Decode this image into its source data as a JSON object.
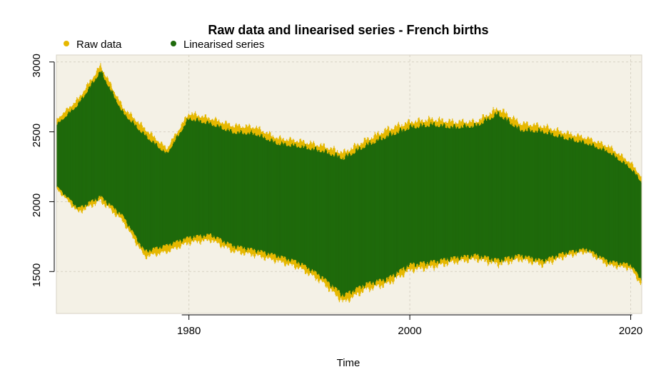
{
  "chart_data": {
    "type": "line",
    "title": "Raw data and linearised series - French births",
    "xlabel": "Time",
    "ylabel": "",
    "xlim": [
      1968,
      2021
    ],
    "ylim": [
      1200,
      3050
    ],
    "grid": true,
    "legend_position": "top-left",
    "x_ticks": [
      1980,
      2000,
      2020
    ],
    "y_ticks": [
      1500,
      2000,
      2500,
      3000
    ],
    "series": [
      {
        "name": "Raw data",
        "color": "#E6B800",
        "x": [
          1968,
          1970,
          1972,
          1974,
          1976,
          1978,
          1980,
          1982,
          1984,
          1986,
          1988,
          1990,
          1992,
          1994,
          1996,
          1998,
          2000,
          2002,
          2004,
          2006,
          2008,
          2010,
          2012,
          2014,
          2016,
          2018,
          2020,
          2021
        ],
        "min": [
          2080,
          1900,
          1980,
          1840,
          1580,
          1620,
          1680,
          1700,
          1620,
          1590,
          1550,
          1500,
          1400,
          1250,
          1340,
          1380,
          1480,
          1500,
          1540,
          1560,
          1520,
          1560,
          1520,
          1580,
          1620,
          1520,
          1500,
          1380
        ],
        "max": [
          2600,
          2760,
          3000,
          2700,
          2550,
          2400,
          2660,
          2620,
          2570,
          2560,
          2480,
          2460,
          2430,
          2380,
          2470,
          2550,
          2600,
          2620,
          2600,
          2600,
          2700,
          2590,
          2570,
          2520,
          2480,
          2420,
          2300,
          2200
        ]
      },
      {
        "name": "Linearised series",
        "color": "#1F6A0C",
        "x": [
          1968,
          1970,
          1972,
          1974,
          1976,
          1978,
          1980,
          1982,
          1984,
          1986,
          1988,
          1990,
          1992,
          1994,
          1996,
          1998,
          2000,
          2002,
          2004,
          2006,
          2008,
          2010,
          2012,
          2014,
          2016,
          2018,
          2020,
          2021
        ],
        "min": [
          2100,
          1930,
          2010,
          1880,
          1620,
          1670,
          1720,
          1740,
          1660,
          1630,
          1590,
          1540,
          1440,
          1300,
          1380,
          1420,
          1520,
          1540,
          1570,
          1590,
          1550,
          1590,
          1550,
          1610,
          1640,
          1550,
          1530,
          1420
        ],
        "max": [
          2560,
          2720,
          2960,
          2660,
          2500,
          2360,
          2620,
          2580,
          2520,
          2510,
          2440,
          2420,
          2390,
          2340,
          2430,
          2500,
          2560,
          2580,
          2560,
          2570,
          2660,
          2540,
          2530,
          2480,
          2440,
          2380,
          2260,
          2160
        ]
      }
    ]
  }
}
